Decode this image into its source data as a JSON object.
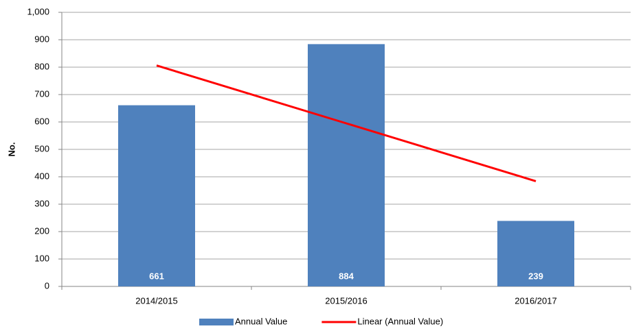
{
  "chart_data": {
    "type": "bar",
    "y_label": "No.",
    "categories": [
      "2014/2015",
      "2015/2016",
      "2016/2017"
    ],
    "series": [
      {
        "name": "Annual Value",
        "color": "#4f81bd",
        "values": [
          661,
          884,
          239
        ],
        "type": "bar"
      },
      {
        "name": "Linear (Annual Value)",
        "color": "#ff0000",
        "values": [
          806,
          595,
          384
        ],
        "type": "line"
      }
    ],
    "ylim": [
      0,
      1000
    ],
    "yticks": [
      0,
      100,
      200,
      300,
      400,
      500,
      600,
      700,
      800,
      900,
      {
        "value": 1000,
        "label": "1,000"
      }
    ],
    "grid": true,
    "legend": "bottom"
  }
}
